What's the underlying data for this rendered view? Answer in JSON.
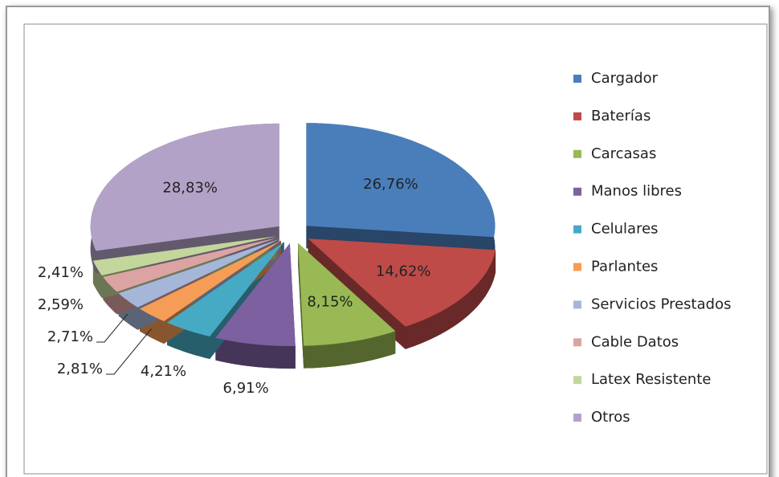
{
  "chart_data": {
    "type": "pie",
    "categories": [
      "Cargador",
      "Baterías",
      "Carcasas",
      "Manos libres",
      "Celulares",
      "Parlantes",
      "Servicios Prestados",
      "Cable Datos",
      "Latex Resistente",
      "Otros"
    ],
    "values": [
      26.76,
      14.62,
      8.15,
      6.91,
      4.21,
      2.81,
      2.71,
      2.59,
      2.41,
      28.83
    ],
    "value_labels": [
      "26,76%",
      "14,62%",
      "8,15%",
      "6,91%",
      "4,21%",
      "2,81%",
      "2,71%",
      "2,59%",
      "2,41%",
      "28,83%"
    ],
    "colors": [
      "#4a7ebb",
      "#be4b48",
      "#98b954",
      "#7d60a0",
      "#46aac5",
      "#f59d56",
      "#a5b6d9",
      "#dba3a2",
      "#c3d69b",
      "#b3a2c7"
    ],
    "legend": "right"
  }
}
